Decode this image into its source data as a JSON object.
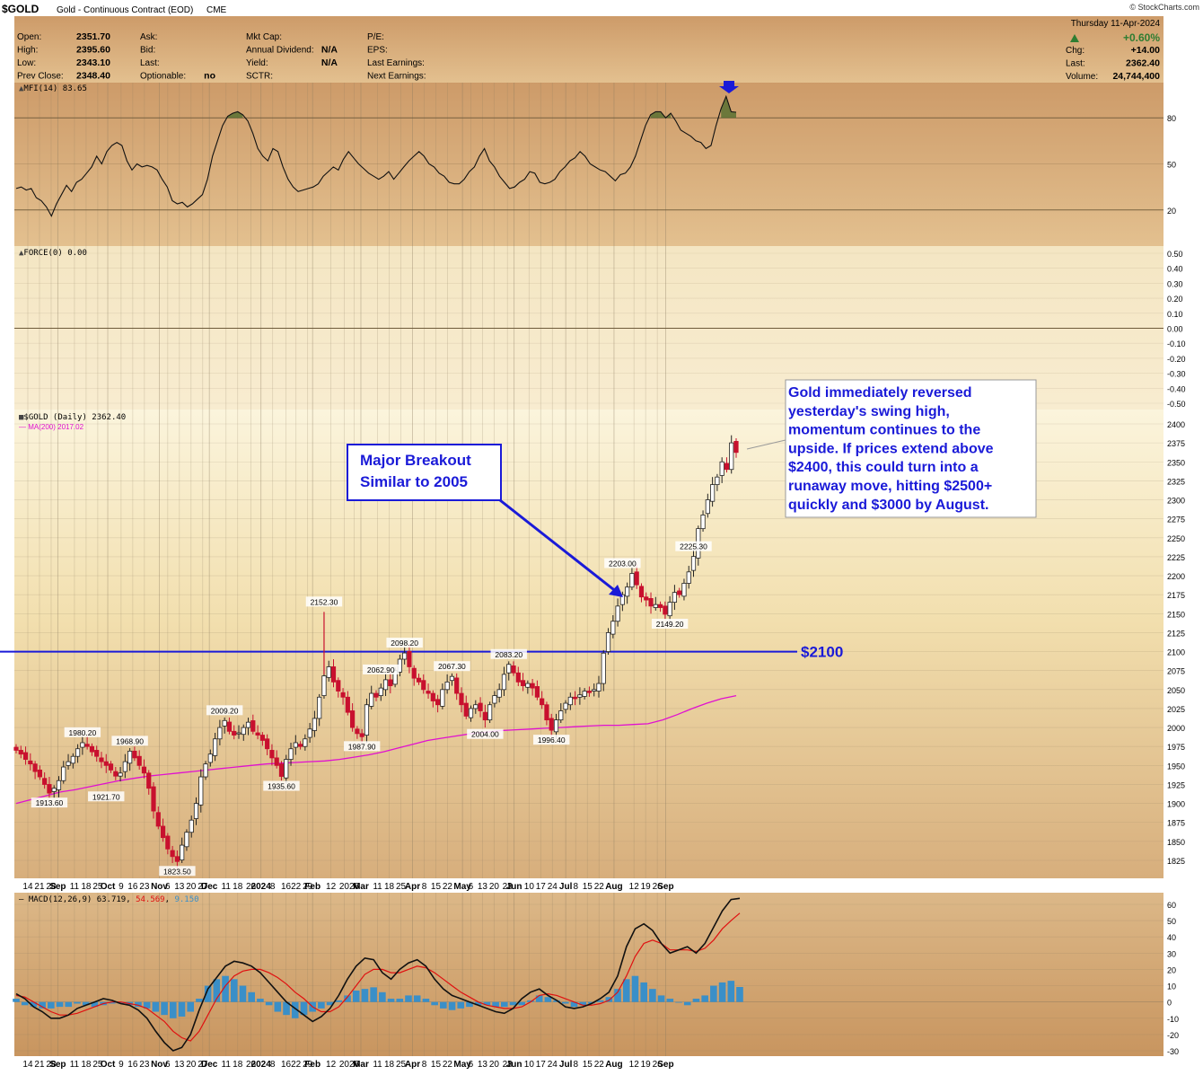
{
  "header": {
    "symbol": "$GOLD",
    "title": "Gold - Continuous Contract (EOD)",
    "exchange": "CME",
    "credit": "© StockCharts.com",
    "date": "Thursday  11-Apr-2024",
    "quote_left": [
      {
        "label": "Open:",
        "value": "2351.70"
      },
      {
        "label": "High:",
        "value": "2395.60"
      },
      {
        "label": "Low:",
        "value": "2343.10"
      },
      {
        "label": "Prev Close:",
        "value": "2348.40"
      }
    ],
    "quote_mid": [
      {
        "label": "Ask:",
        "value": ""
      },
      {
        "label": "Bid:",
        "value": ""
      },
      {
        "label": "Last:",
        "value": ""
      },
      {
        "label": "Optionable:",
        "value": "no"
      }
    ],
    "quote_right": [
      {
        "label": "Mkt Cap:",
        "value": ""
      },
      {
        "label": "Annual Dividend:",
        "value": "N/A"
      },
      {
        "label": "Yield:",
        "value": "N/A"
      },
      {
        "label": "SCTR:",
        "value": ""
      }
    ],
    "quote_earn": [
      {
        "label": "P/E:"
      },
      {
        "label": "EPS:"
      },
      {
        "label": "Last Earnings:"
      },
      {
        "label": "Next Earnings:"
      }
    ],
    "change_pct": "+0.60%",
    "summary": [
      {
        "label": "Chg:",
        "value": "+14.00"
      },
      {
        "label": "Last:",
        "value": "2362.40"
      },
      {
        "label": "Volume:",
        "value": "24,744,400"
      }
    ]
  },
  "colors": {
    "bg_top": "#cf9f6e",
    "bg_mid": "#f5e7c2",
    "grid": "#8a7a60",
    "up_candle": "#ffffff",
    "down_candle": "#c8102e",
    "ma200": "#e010d0",
    "annotation": "#1a1ad8",
    "macd_hist": "#3a8fc8",
    "macd_signal": "#e01010",
    "mfi_fill": "#4a6a2a"
  },
  "chart_data": [
    {
      "type": "line",
      "panel": "MFI",
      "legend": "MFI(14) 83.65",
      "ylim": [
        0,
        100
      ],
      "y_ticks": [
        80,
        50,
        20
      ],
      "values": [
        34,
        35,
        33,
        34,
        28,
        26,
        22,
        16,
        24,
        30,
        36,
        32,
        38,
        40,
        44,
        48,
        55,
        50,
        58,
        62,
        64,
        62,
        52,
        46,
        50,
        48,
        49,
        48,
        46,
        40,
        35,
        26,
        24,
        25,
        22,
        24,
        27,
        30,
        40,
        55,
        65,
        75,
        81,
        83,
        84,
        82,
        78,
        70,
        60,
        55,
        52,
        60,
        58,
        48,
        40,
        35,
        32,
        33,
        34,
        35,
        37,
        42,
        45,
        48,
        46,
        53,
        58,
        54,
        50,
        47,
        44,
        42,
        40,
        42,
        45,
        40,
        44,
        48,
        52,
        55,
        58,
        55,
        50,
        48,
        44,
        42,
        38,
        37,
        37,
        40,
        45,
        48,
        55,
        60,
        52,
        48,
        42,
        38,
        34,
        35,
        38,
        40,
        45,
        44,
        38,
        37,
        38,
        40,
        45,
        48,
        52,
        54,
        58,
        55,
        50,
        48,
        46,
        45,
        42,
        39,
        43,
        44,
        48,
        55,
        65,
        75,
        82,
        84,
        84,
        80,
        83,
        78,
        72,
        70,
        68,
        65,
        64,
        60,
        62,
        75,
        86,
        94,
        84,
        83.65
      ],
      "overbought_at": 80
    },
    {
      "type": "line",
      "panel": "Force Index",
      "legend": "FORCE(0) 0.00",
      "ylim": [
        -0.5,
        0.5
      ],
      "y_ticks": [
        "0.50",
        "0.40",
        "0.30",
        "0.20",
        "0.10",
        "0.00",
        "-0.10",
        "-0.20",
        "-0.30",
        "-0.40",
        "-0.50"
      ],
      "values": []
    },
    {
      "type": "candlestick",
      "panel": "Price",
      "legend": "$GOLD (Daily) 2362.40",
      "ma_legend": "MA(200) 2017.02",
      "ylim": [
        1812,
        2412
      ],
      "y_ticks": [
        2400,
        2375,
        2350,
        2325,
        2300,
        2275,
        2250,
        2225,
        2200,
        2175,
        2150,
        2125,
        2100,
        2075,
        2050,
        2025,
        2000,
        1975,
        1950,
        1925,
        1900,
        1875,
        1850,
        1825
      ],
      "closes": [
        1970,
        1965,
        1958,
        1952,
        1942,
        1935,
        1925,
        1913.6,
        1920,
        1930,
        1948,
        1955,
        1962,
        1972,
        1980,
        1975,
        1968,
        1962,
        1955,
        1950,
        1944,
        1936,
        1940,
        1955,
        1968.9,
        1960,
        1950,
        1940,
        1920,
        1890,
        1870,
        1855,
        1840,
        1830,
        1823.5,
        1845,
        1862,
        1878,
        1900,
        1935,
        1952,
        1965,
        1985,
        2000,
        2009.2,
        1995,
        1990,
        1993,
        2000,
        2007,
        1995,
        1990,
        1983,
        1972,
        1960,
        1950,
        1935.6,
        1958,
        1972,
        1980,
        1975,
        1985,
        1998,
        2012,
        2040,
        2068,
        2080,
        2060,
        2048,
        2040,
        2020,
        2000,
        1992,
        1987.9,
        2030,
        2045,
        2040,
        2052,
        2062.9,
        2055,
        2075,
        2090,
        2098.2,
        2080,
        2065,
        2060,
        2050,
        2045,
        2035,
        2030,
        2050,
        2060,
        2067.3,
        2045,
        2030,
        2015,
        2025,
        2030,
        2022,
        2010,
        2030,
        2042,
        2050,
        2070,
        2083.2,
        2072,
        2060,
        2055,
        2058,
        2052,
        2040,
        2030,
        2010,
        1996.4,
        2010,
        2022,
        2032,
        2040,
        2038,
        2043,
        2048,
        2046,
        2050,
        2058,
        2098,
        2125,
        2140,
        2160,
        2175,
        2185,
        2203,
        2188,
        2172,
        2168,
        2160,
        2162,
        2158,
        2149.2,
        2165,
        2178,
        2175,
        2190,
        2205,
        2225.3,
        2262,
        2280,
        2300,
        2320,
        2330,
        2350,
        2340,
        2375,
        2362.4
      ],
      "labels": [
        {
          "text": "1980.20"
        },
        {
          "text": "1968.90"
        },
        {
          "text": "1913.60"
        },
        {
          "text": "1921.70"
        },
        {
          "text": "1823.50"
        },
        {
          "text": "2009.20"
        },
        {
          "text": "1935.60"
        },
        {
          "text": "2152.30"
        },
        {
          "text": "2062.90"
        },
        {
          "text": "1987.90"
        },
        {
          "text": "2098.20"
        },
        {
          "text": "2067.30"
        },
        {
          "text": "2004.00"
        },
        {
          "text": "2083.20"
        },
        {
          "text": "1996.40"
        },
        {
          "text": "2203.00"
        },
        {
          "text": "2149.20"
        },
        {
          "text": "2225.30"
        }
      ],
      "level_line": {
        "value": 2100,
        "label": "$2100"
      },
      "ma200": [
        1900,
        1905,
        1910,
        1915,
        1918,
        1922,
        1926,
        1930,
        1933,
        1936,
        1938,
        1940,
        1942,
        1944,
        1946,
        1948,
        1950,
        1952,
        1953,
        1954,
        1955,
        1956,
        1958,
        1961,
        1964,
        1968,
        1973,
        1978,
        1983,
        1986,
        1989,
        1992,
        1994,
        1996,
        1997,
        1998,
        1999,
        2000,
        2001,
        2002,
        2003,
        2003,
        2004,
        2005,
        2010,
        2017,
        2025,
        2032,
        2038,
        2042
      ]
    },
    {
      "type": "bar",
      "panel": "MACD",
      "legend_prefix": "MACD(12,26,9)",
      "legend_macd": "63.719",
      "legend_signal": "54.569",
      "legend_hist": "9.150",
      "ylim": [
        -33,
        66
      ],
      "y_ticks": [
        60,
        50,
        40,
        30,
        20,
        10,
        0,
        -10,
        -20,
        -30
      ],
      "macd": [
        5,
        2,
        -3,
        -6,
        -10,
        -10,
        -8,
        -4,
        -2,
        0,
        2,
        1,
        -1,
        -2,
        -5,
        -10,
        -18,
        -25,
        -30,
        -28,
        -20,
        -5,
        8,
        15,
        22,
        25,
        24,
        22,
        18,
        12,
        6,
        0,
        -4,
        -8,
        -12,
        -9,
        -4,
        4,
        14,
        22,
        27,
        26,
        18,
        14,
        20,
        24,
        26,
        22,
        14,
        8,
        4,
        2,
        0,
        -2,
        -4,
        -6,
        -7,
        -4,
        2,
        6,
        8,
        4,
        1,
        -3,
        -4,
        -3,
        -1,
        2,
        6,
        16,
        34,
        45,
        48,
        44,
        36,
        30,
        32,
        34,
        30,
        36,
        46,
        56,
        63,
        63.7
      ],
      "signal": [
        4,
        3,
        0,
        -3,
        -6,
        -8,
        -8,
        -7,
        -5,
        -3,
        -1,
        0,
        0,
        -1,
        -2,
        -4,
        -8,
        -12,
        -18,
        -22,
        -24,
        -18,
        -8,
        2,
        10,
        16,
        19,
        20,
        20,
        18,
        15,
        11,
        6,
        2,
        -3,
        -6,
        -6,
        -3,
        3,
        10,
        17,
        20,
        20,
        18,
        18,
        20,
        22,
        21,
        18,
        14,
        10,
        6,
        3,
        0,
        -2,
        -3,
        -4,
        -4,
        -3,
        0,
        4,
        5,
        4,
        2,
        0,
        -2,
        -2,
        -1,
        1,
        6,
        16,
        28,
        36,
        38,
        36,
        32,
        32,
        32,
        31,
        33,
        38,
        45,
        50,
        54.6
      ],
      "hist": [
        2,
        -2,
        -3,
        -4,
        -4,
        -3,
        -3,
        -1,
        -2,
        -3,
        -2,
        -1,
        -1,
        -2,
        -3,
        -4,
        -6,
        -8,
        -10,
        -9,
        -6,
        2,
        10,
        14,
        16,
        14,
        10,
        6,
        2,
        -2,
        -6,
        -8,
        -10,
        -8,
        -6,
        -4,
        -2,
        1,
        4,
        7,
        8,
        9,
        6,
        2,
        2,
        4,
        4,
        2,
        -2,
        -4,
        -5,
        -4,
        -3,
        -2,
        -2,
        -3,
        -3,
        -2,
        -2,
        1,
        4,
        3,
        1,
        -1,
        -3,
        -2,
        -1,
        1,
        3,
        8,
        14,
        16,
        12,
        8,
        4,
        2,
        0,
        -2,
        2,
        4,
        10,
        12,
        13,
        9.2
      ]
    },
    {
      "type": "table",
      "panel": "time-axis",
      "months": [
        "Sep",
        "Oct",
        "Nov",
        "Dec",
        "2024",
        "Feb",
        "Mar",
        "Apr",
        "May",
        "Jun",
        "Jul",
        "Aug",
        "Sep"
      ],
      "ticks": [
        "14",
        "21",
        "28",
        "Sep",
        "11",
        "18",
        "25",
        "Oct",
        "9",
        "16",
        "23",
        "Nov",
        "6",
        "13",
        "20",
        "27",
        "Dec",
        "11",
        "18",
        "26",
        "2024",
        "8",
        "16",
        "22",
        "29",
        "Feb",
        "12",
        "20",
        "26",
        "Mar",
        "11",
        "18",
        "25",
        "Apr",
        "8",
        "15",
        "22",
        "May",
        "6",
        "13",
        "20",
        "28",
        "Jun",
        "10",
        "17",
        "24",
        "Jul",
        "8",
        "15",
        "22",
        "Aug",
        "12",
        "19",
        "26",
        "Sep"
      ]
    }
  ],
  "annotations": {
    "breakout_box": [
      "Major Breakout",
      "Similar to 2005"
    ],
    "commentary": [
      "Gold immediately reversed",
      "yesterday's swing high,",
      "momentum continues to the",
      "upside. If prices extend above",
      "$2400, this could turn into a",
      "runaway move, hitting $2500+",
      "quickly and $3000 by August."
    ]
  }
}
